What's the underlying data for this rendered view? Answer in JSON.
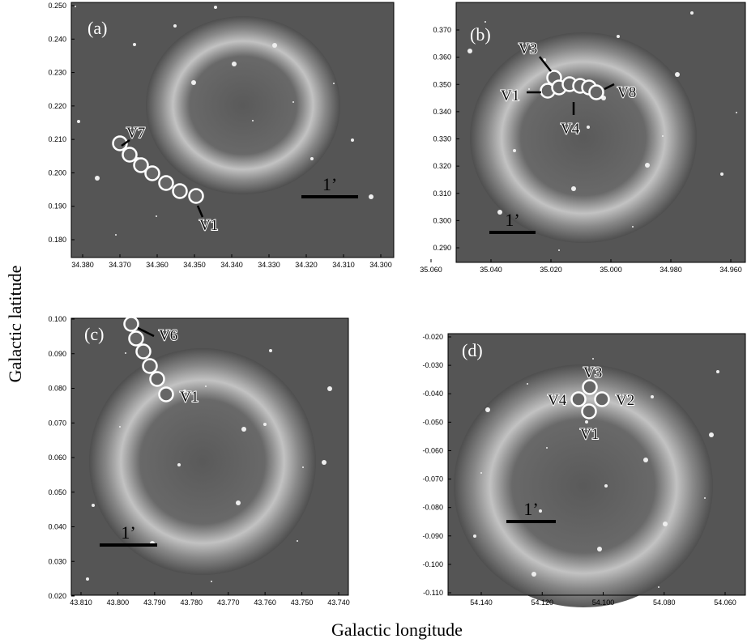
{
  "figure": {
    "y_axis_title": "Galactic latitude",
    "x_axis_title": "Galactic longitude",
    "panels": [
      {
        "label": "(a)",
        "scale_label": "1’",
        "xticks": [
          "34.380",
          "34.370",
          "34.360",
          "34.350",
          "34.340",
          "34.330",
          "34.320",
          "34.310",
          "34.300"
        ],
        "yticks": [
          "0.250",
          "0.240",
          "0.230",
          "0.220",
          "0.210",
          "0.200",
          "0.190",
          "0.180"
        ],
        "markers": [
          "V7",
          "V1"
        ]
      },
      {
        "label": "(b)",
        "scale_label": "1’",
        "xticks": [
          "35.060",
          "35.040",
          "35.020",
          "35.000",
          "34.980",
          "34.960"
        ],
        "yticks": [
          "0.370",
          "0.360",
          "0.350",
          "0.340",
          "0.330",
          "0.320",
          "0.310",
          "0.300",
          "0.290"
        ],
        "markers": [
          "V3",
          "V1",
          "V4",
          "V8"
        ]
      },
      {
        "label": "(c)",
        "scale_label": "1’",
        "xticks": [
          "43.810",
          "43.800",
          "43.790",
          "43.780",
          "43.770",
          "43.760",
          "43.750",
          "43.740"
        ],
        "yticks": [
          "0.100",
          "0.090",
          "0.080",
          "0.070",
          "0.060",
          "0.050",
          "0.040",
          "0.030",
          "0.020"
        ],
        "markers": [
          "V6",
          "V1"
        ]
      },
      {
        "label": "(d)",
        "scale_label": "1’",
        "xticks": [
          "54.140",
          "54.120",
          "54.100",
          "54.080",
          "54.060"
        ],
        "yticks": [
          "-0.020",
          "-0.030",
          "-0.040",
          "-0.050",
          "-0.060",
          "-0.070",
          "-0.080",
          "-0.090",
          "-0.100",
          "-0.110"
        ],
        "markers": [
          "V3",
          "V4",
          "V2",
          "V1"
        ]
      }
    ]
  }
}
